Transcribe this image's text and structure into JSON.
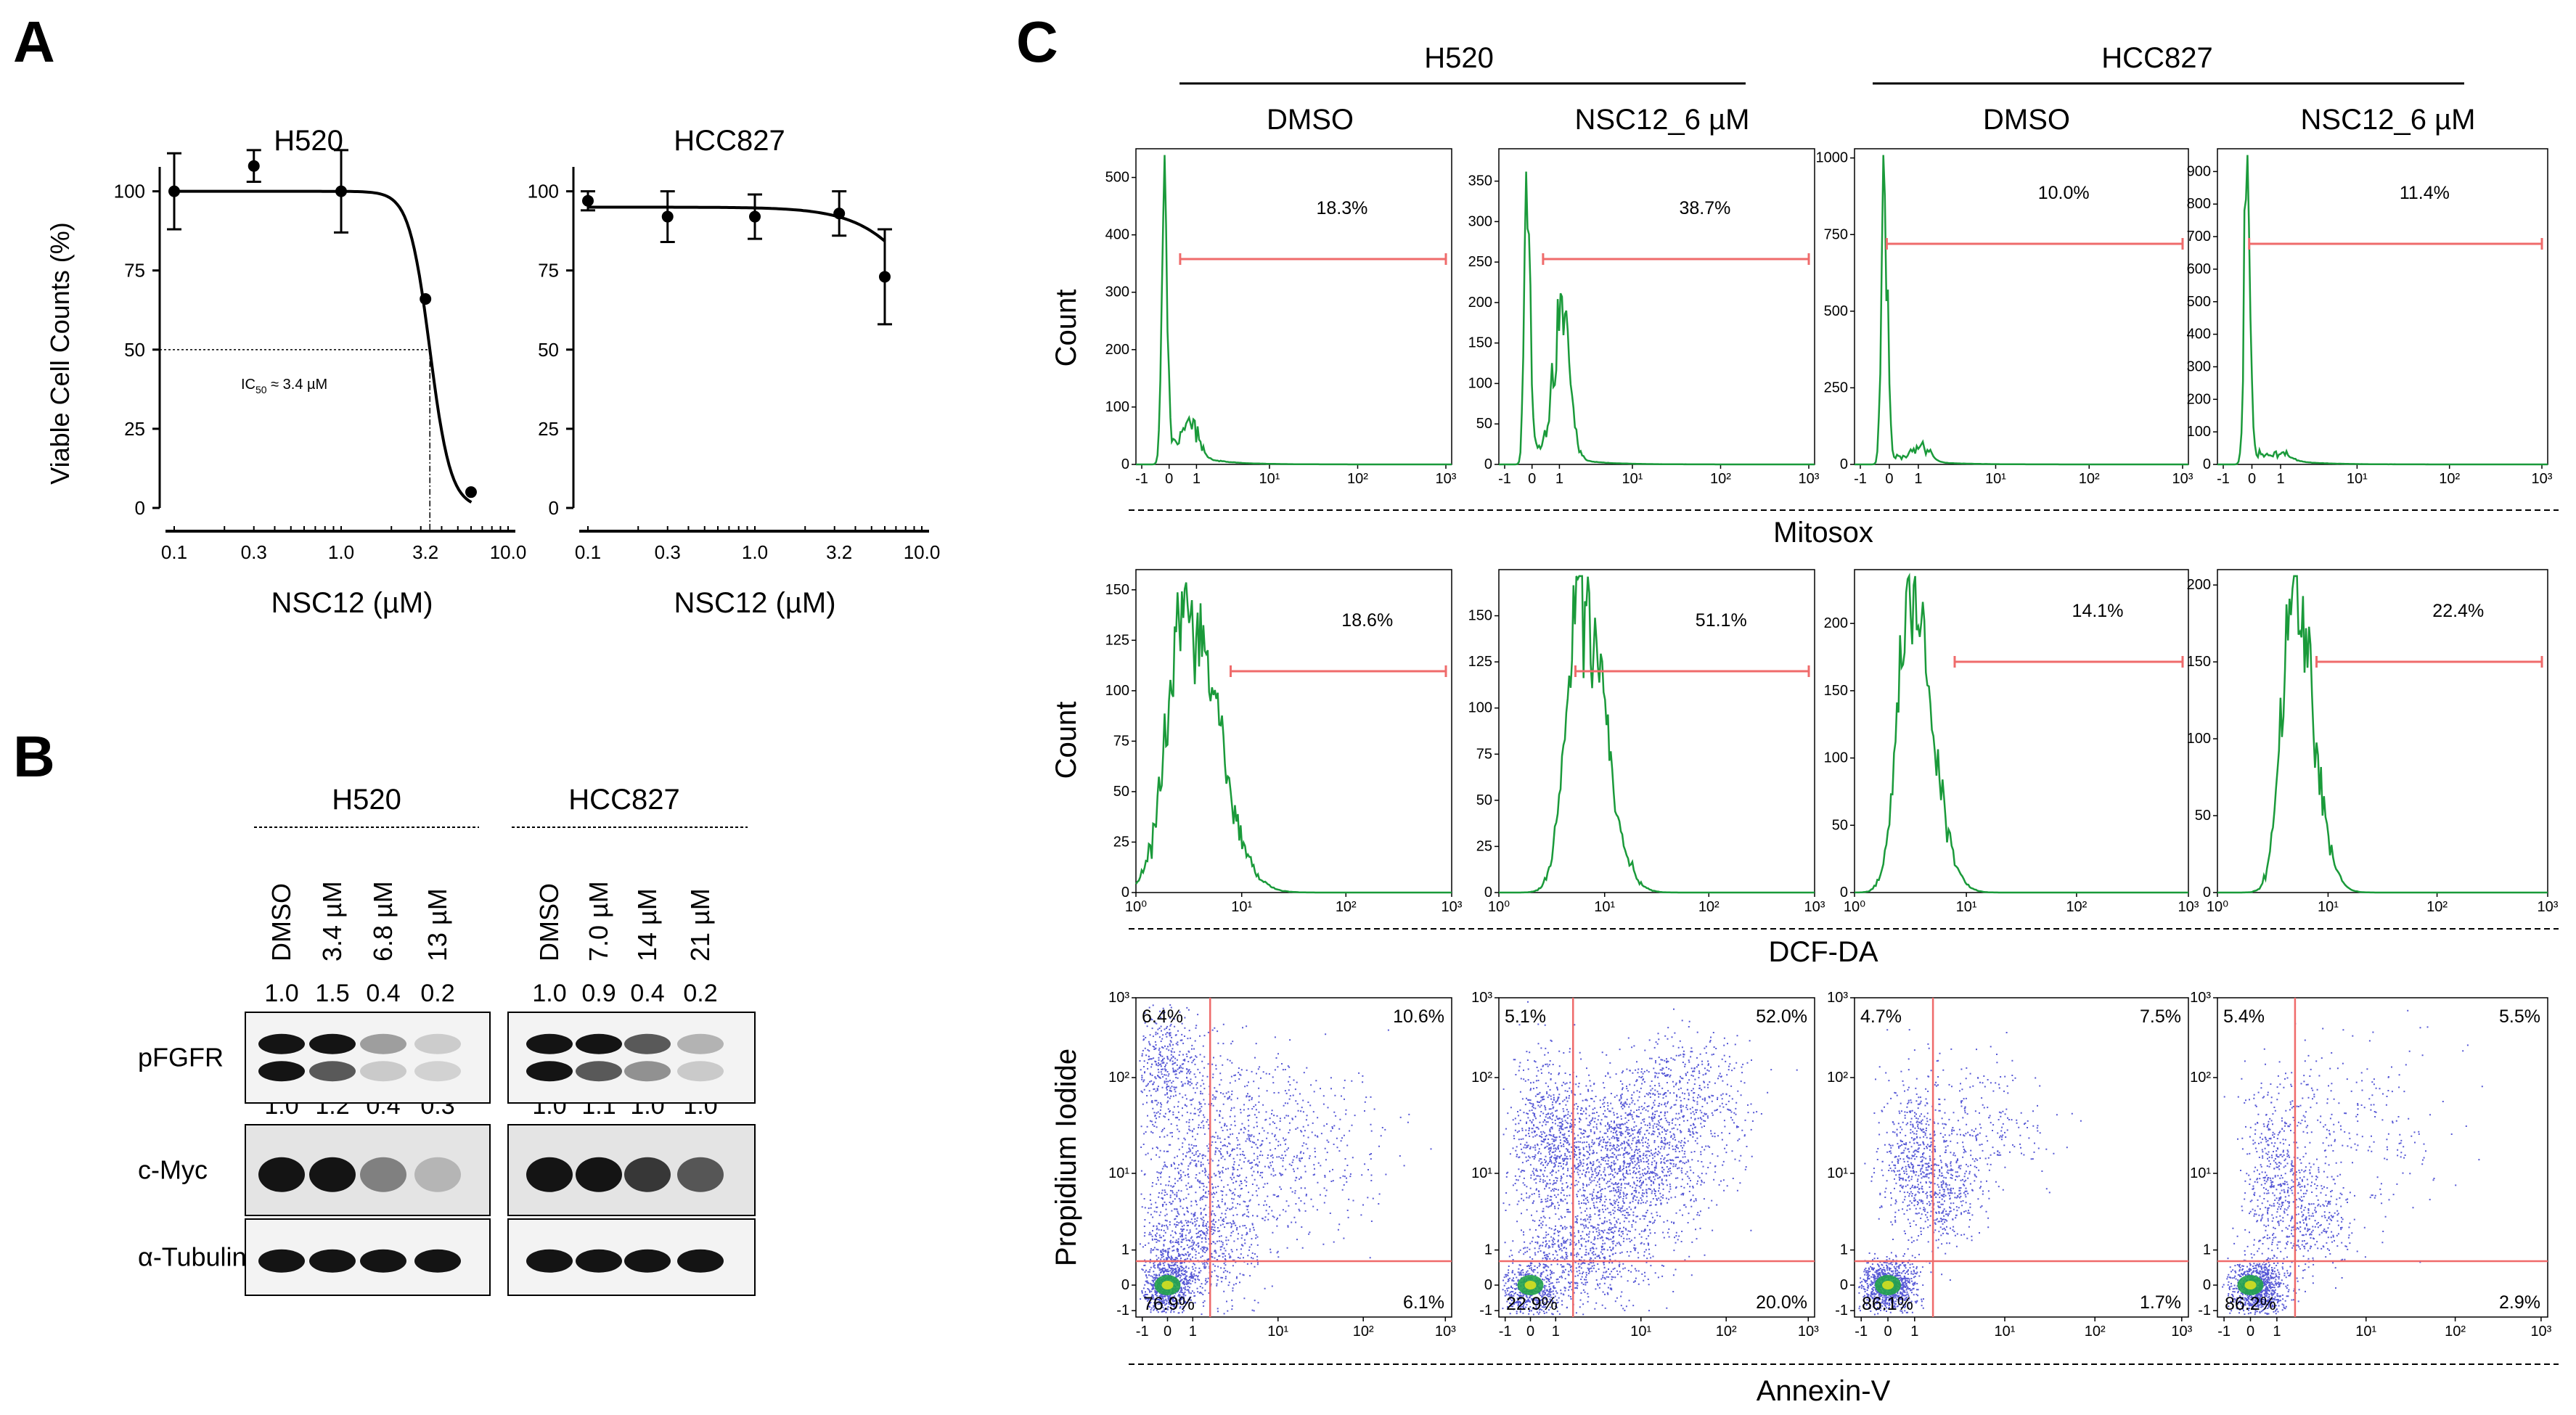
{
  "panel_letters": {
    "a": "A",
    "b": "B",
    "c": "C"
  },
  "panel_a": {
    "ylabel": "Viable Cell Counts (%)",
    "xlabel": "NSC12 (µM)",
    "ic50_label": "IC",
    "ic50_sub": "50",
    "ic50_value": " ≈ 3.4 µM",
    "y_ticks": [
      "0",
      "25",
      "50",
      "75",
      "100"
    ],
    "x_ticks": [
      "0.1",
      "0.3",
      "1.0",
      "3.2",
      "10.0"
    ]
  },
  "chart_data": [
    {
      "type": "scatter",
      "title": "H520",
      "xlabel": "NSC12 (µM)",
      "ylabel": "Viable Cell Counts (%)",
      "x_scale": "log",
      "xlim": [
        0.1,
        10
      ],
      "ylim": [
        0,
        110
      ],
      "x": [
        0.1,
        0.3,
        1.0,
        3.2,
        6.0
      ],
      "y": [
        100,
        108,
        100,
        66,
        5
      ],
      "error": [
        12,
        5,
        13,
        0,
        0
      ],
      "fit": "sigmoid",
      "ic50": 3.4
    },
    {
      "type": "scatter",
      "title": "HCC827",
      "xlabel": "NSC12 (µM)",
      "ylabel": "",
      "x_scale": "log",
      "xlim": [
        0.1,
        10
      ],
      "ylim": [
        0,
        110
      ],
      "x": [
        0.1,
        0.3,
        1.0,
        3.2,
        6.0
      ],
      "y": [
        97,
        92,
        92,
        93,
        73
      ],
      "error": [
        3,
        8,
        7,
        7,
        15
      ],
      "fit": "sigmoid"
    },
    {
      "type": "histogram",
      "title": "Mitosox · H520 · DMSO",
      "ylabel": "Count",
      "gate_percent": "18.3%",
      "x_ticks": [
        "-1",
        "0",
        "1",
        "10¹",
        "10²",
        "10³"
      ],
      "y_ticks": [
        "0",
        "100",
        "200",
        "300",
        "400",
        "500"
      ],
      "ylim": [
        0,
        550
      ]
    },
    {
      "type": "histogram",
      "title": "Mitosox · H520 · NSC12_6 µM",
      "gate_percent": "38.7%",
      "x_ticks": [
        "-1",
        "0",
        "1",
        "10¹",
        "10²",
        "10³"
      ],
      "y_ticks": [
        "0",
        "50",
        "100",
        "150",
        "200",
        "250",
        "300",
        "350"
      ],
      "ylim": [
        0,
        390
      ]
    },
    {
      "type": "histogram",
      "title": "Mitosox · HCC827 · DMSO",
      "gate_percent": "10.0%",
      "x_ticks": [
        "-1",
        "0",
        "1",
        "10¹",
        "10²",
        "10³"
      ],
      "y_ticks": [
        "0",
        "250",
        "500",
        "750",
        "1000"
      ],
      "ylim": [
        0,
        1030
      ]
    },
    {
      "type": "histogram",
      "title": "Mitosox · HCC827 · NSC12_6 µM",
      "gate_percent": "11.4%",
      "x_ticks": [
        "-1",
        "0",
        "1",
        "10¹",
        "10²",
        "10³"
      ],
      "y_ticks": [
        "0",
        "100",
        "200",
        "300",
        "400",
        "500",
        "600",
        "700",
        "800",
        "900"
      ],
      "ylim": [
        0,
        970
      ]
    },
    {
      "type": "histogram",
      "title": "DCF-DA · H520 · DMSO",
      "ylabel": "Count",
      "gate_percent": "18.6%",
      "x_ticks": [
        "10⁰",
        "10¹",
        "10²",
        "10³"
      ],
      "y_ticks": [
        "0",
        "25",
        "50",
        "75",
        "100",
        "125",
        "150"
      ],
      "ylim": [
        0,
        160
      ]
    },
    {
      "type": "histogram",
      "title": "DCF-DA · H520 · NSC12_6 µM",
      "gate_percent": "51.1%",
      "x_ticks": [
        "10⁰",
        "10¹",
        "10²",
        "10³"
      ],
      "y_ticks": [
        "0",
        "25",
        "50",
        "75",
        "100",
        "125",
        "150"
      ],
      "ylim": [
        0,
        175
      ]
    },
    {
      "type": "histogram",
      "title": "DCF-DA · HCC827 · DMSO",
      "gate_percent": "14.1%",
      "x_ticks": [
        "10⁰",
        "10¹",
        "10²",
        "10³"
      ],
      "y_ticks": [
        "0",
        "50",
        "100",
        "150",
        "200"
      ],
      "ylim": [
        0,
        240
      ]
    },
    {
      "type": "histogram",
      "title": "DCF-DA · HCC827 · NSC12_6 µM",
      "gate_percent": "22.4%",
      "x_ticks": [
        "10⁰",
        "10¹",
        "10²",
        "10³"
      ],
      "y_ticks": [
        "0",
        "50",
        "100",
        "150",
        "200"
      ],
      "ylim": [
        0,
        210
      ]
    },
    {
      "type": "scatter",
      "title": "Annexin-V/PI · H520 · DMSO",
      "quadrants": {
        "ul": "6.4%",
        "ur": "10.6%",
        "ll": "76.9%",
        "lr": "6.1%"
      }
    },
    {
      "type": "scatter",
      "title": "Annexin-V/PI · H520 · NSC12_6 µM",
      "quadrants": {
        "ul": "5.1%",
        "ur": "52.0%",
        "ll": "22.9%",
        "lr": "20.0%"
      }
    },
    {
      "type": "scatter",
      "title": "Annexin-V/PI · HCC827 · DMSO",
      "quadrants": {
        "ul": "4.7%",
        "ur": "7.5%",
        "ll": "86.1%",
        "lr": "1.7%"
      }
    },
    {
      "type": "scatter",
      "title": "Annexin-V/PI · HCC827 · NSC12_6 µM",
      "quadrants": {
        "ul": "5.4%",
        "ur": "5.5%",
        "ll": "86.2%",
        "lr": "2.9%"
      }
    }
  ],
  "panel_b": {
    "groups": [
      "H520",
      "HCC827"
    ],
    "lanes": [
      [
        "DMSO",
        "3.4 µM",
        "6.8 µM",
        "13 µM"
      ],
      [
        "DMSO",
        "7.0 µM",
        "14 µM",
        "21 µM"
      ]
    ],
    "row_labels": [
      "pFGFR",
      "c-Myc",
      "α-Tubulin"
    ],
    "pfgfr_density": [
      [
        "1.0",
        "1.5",
        "0.4",
        "0.2"
      ],
      [
        "1.0",
        "0.9",
        "0.4",
        "0.2"
      ]
    ],
    "cmyc_density": [
      [
        "1.0",
        "1.2",
        "0.4",
        "0.3"
      ],
      [
        "1.0",
        "1.1",
        "1.0",
        "1.0"
      ]
    ]
  },
  "panel_c": {
    "cell_lines": [
      "H520",
      "HCC827"
    ],
    "conditions": [
      "DMSO",
      "NSC12_6 µM",
      "DMSO",
      "NSC12_6 µM"
    ],
    "row_xlabels": [
      "Mitosox",
      "DCF-DA",
      "Annexin-V"
    ],
    "count_label": "Count",
    "pi_label": "Propidium Iodide",
    "pi_y_ticks": [
      "10³",
      "10²",
      "10¹",
      "1",
      "0",
      "-1"
    ],
    "pi_x_ticks": [
      "-1",
      "0",
      "1",
      "10¹",
      "10²",
      "10³"
    ]
  },
  "colors": {
    "histogram": "#1a9a3a",
    "gate": "#ef6b6b",
    "dots": "#1f22c8",
    "dots_dense": "#22a34a"
  }
}
